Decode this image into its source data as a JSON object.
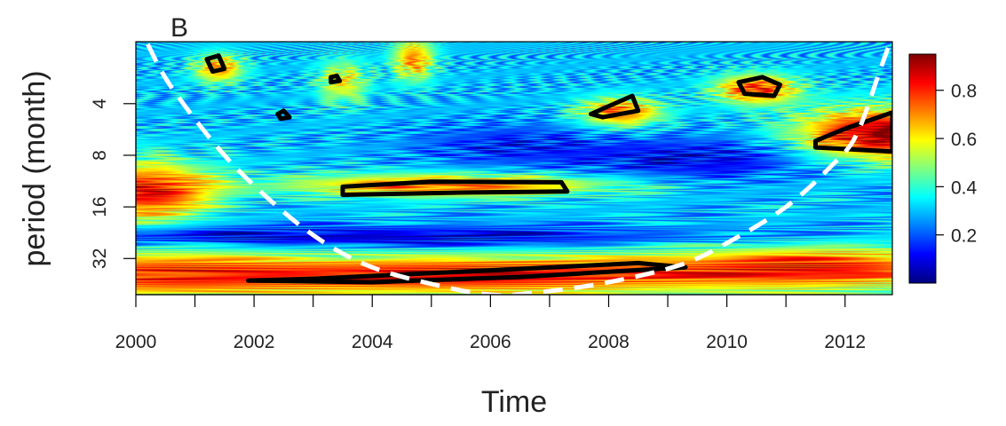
{
  "chart_data": {
    "type": "heatmap",
    "panel_label": "B",
    "title": "",
    "xlabel": "Time",
    "ylabel": "period (month)",
    "xlim": [
      2000,
      2012.8
    ],
    "x_ticks": [
      2000,
      2001,
      2002,
      2003,
      2004,
      2005,
      2006,
      2007,
      2008,
      2009,
      2010,
      2011,
      2012
    ],
    "x_tick_labels": [
      "2000",
      "",
      "2002",
      "",
      "2004",
      "",
      "2006",
      "",
      "2008",
      "",
      "2010",
      "",
      "2012"
    ],
    "y_scale": "log2",
    "y_reversed": true,
    "ylim_log2": [
      0.8,
      5.7
    ],
    "y_ticks": [
      4,
      8,
      16,
      32
    ],
    "y_tick_labels": [
      "4",
      "8",
      "16",
      "32"
    ],
    "colorbar": {
      "range": [
        0,
        0.95
      ],
      "ticks": [
        0.2,
        0.4,
        0.6,
        0.8
      ],
      "tick_labels": [
        "0.2",
        "0.4",
        "0.6",
        "0.8"
      ],
      "colors": [
        "#00007f",
        "#0000ff",
        "#007fff",
        "#00ffff",
        "#7fff7f",
        "#ffff00",
        "#ff7f00",
        "#ff0000",
        "#7f0000"
      ]
    },
    "background_power": 0.3,
    "power_features": [
      {
        "x": 2005.7,
        "period": 40,
        "sx": 3.2,
        "sy": 0.28,
        "power": 0.55
      },
      {
        "x": 2000.0,
        "period": 40,
        "sx": 2.0,
        "sy": 0.35,
        "power": 0.4
      },
      {
        "x": 2011.8,
        "period": 36,
        "sx": 2.0,
        "sy": 0.3,
        "power": 0.45
      },
      {
        "x": 2000.2,
        "period": 13,
        "sx": 0.8,
        "sy": 0.4,
        "power": 0.55
      },
      {
        "x": 2005.3,
        "period": 12,
        "sx": 2.0,
        "sy": 0.16,
        "power": 0.45
      },
      {
        "x": 2012.6,
        "period": 6,
        "sx": 1.0,
        "sy": 0.35,
        "power": 0.65
      },
      {
        "x": 2010.5,
        "period": 3.3,
        "sx": 0.5,
        "sy": 0.2,
        "power": 0.5
      },
      {
        "x": 2008.2,
        "period": 4.5,
        "sx": 0.5,
        "sy": 0.2,
        "power": 0.45
      },
      {
        "x": 2001.4,
        "period": 2.5,
        "sx": 0.3,
        "sy": 0.2,
        "power": 0.4
      },
      {
        "x": 2004.7,
        "period": 2.2,
        "sx": 0.25,
        "sy": 0.3,
        "power": 0.4
      },
      {
        "x": 2003.5,
        "period": 3,
        "sx": 0.3,
        "sy": 0.3,
        "power": 0.3
      },
      {
        "x": 2006.3,
        "period": 7,
        "sx": 1.2,
        "sy": 0.3,
        "power": -0.15
      },
      {
        "x": 2003.0,
        "period": 24,
        "sx": 5.0,
        "sy": 0.15,
        "power": -0.25
      },
      {
        "x": 2009.5,
        "period": 8.5,
        "sx": 1.5,
        "sy": 0.3,
        "power": -0.2
      }
    ],
    "significance_contours": [
      {
        "points": [
          [
            2003.5,
            12.2
          ],
          [
            2005.0,
            11.4
          ],
          [
            2007.2,
            11.5
          ],
          [
            2007.3,
            13.0
          ],
          [
            2005.5,
            13.2
          ],
          [
            2003.5,
            13.6
          ]
        ]
      },
      {
        "points": [
          [
            2001.9,
            43
          ],
          [
            2004.0,
            44
          ],
          [
            2006.5,
            41
          ],
          [
            2009.3,
            36
          ],
          [
            2008.5,
            34
          ],
          [
            2006.0,
            37.5
          ],
          [
            2003.0,
            42
          ]
        ]
      },
      {
        "points": [
          [
            2011.5,
            7.2
          ],
          [
            2012.8,
            7.6
          ],
          [
            2012.8,
            4.5
          ],
          [
            2012.0,
            5.6
          ],
          [
            2011.5,
            6.6
          ]
        ]
      },
      {
        "points": [
          [
            2010.2,
            3.0
          ],
          [
            2010.6,
            2.8
          ],
          [
            2010.9,
            3.1
          ],
          [
            2010.8,
            3.6
          ],
          [
            2010.3,
            3.5
          ]
        ]
      },
      {
        "points": [
          [
            2007.7,
            4.6
          ],
          [
            2008.4,
            3.6
          ],
          [
            2008.5,
            4.4
          ],
          [
            2007.9,
            4.8
          ]
        ]
      },
      {
        "points": [
          [
            2001.2,
            2.2
          ],
          [
            2001.4,
            2.1
          ],
          [
            2001.5,
            2.5
          ],
          [
            2001.3,
            2.6
          ]
        ]
      },
      {
        "points": [
          [
            2002.4,
            4.6
          ],
          [
            2002.5,
            4.4
          ],
          [
            2002.6,
            4.8
          ],
          [
            2002.45,
            4.9
          ]
        ]
      },
      {
        "points": [
          [
            2003.3,
            2.8
          ],
          [
            2003.4,
            2.75
          ],
          [
            2003.45,
            2.95
          ],
          [
            2003.3,
            3.0
          ]
        ]
      }
    ],
    "cone_of_influence": [
      [
        2000.2,
        1.8
      ],
      [
        2000.6,
        3.2
      ],
      [
        2001.5,
        8
      ],
      [
        2002.4,
        16
      ],
      [
        2003.2,
        26
      ],
      [
        2004.0,
        36
      ],
      [
        2005.0,
        45
      ],
      [
        2006.0,
        52
      ],
      [
        2006.9,
        50
      ],
      [
        2008.0,
        44
      ],
      [
        2009.2,
        35
      ],
      [
        2010.0,
        26
      ],
      [
        2011.0,
        16
      ],
      [
        2011.8,
        9
      ],
      [
        2012.2,
        6
      ],
      [
        2012.6,
        2.5
      ],
      [
        2012.75,
        1.8
      ]
    ]
  }
}
